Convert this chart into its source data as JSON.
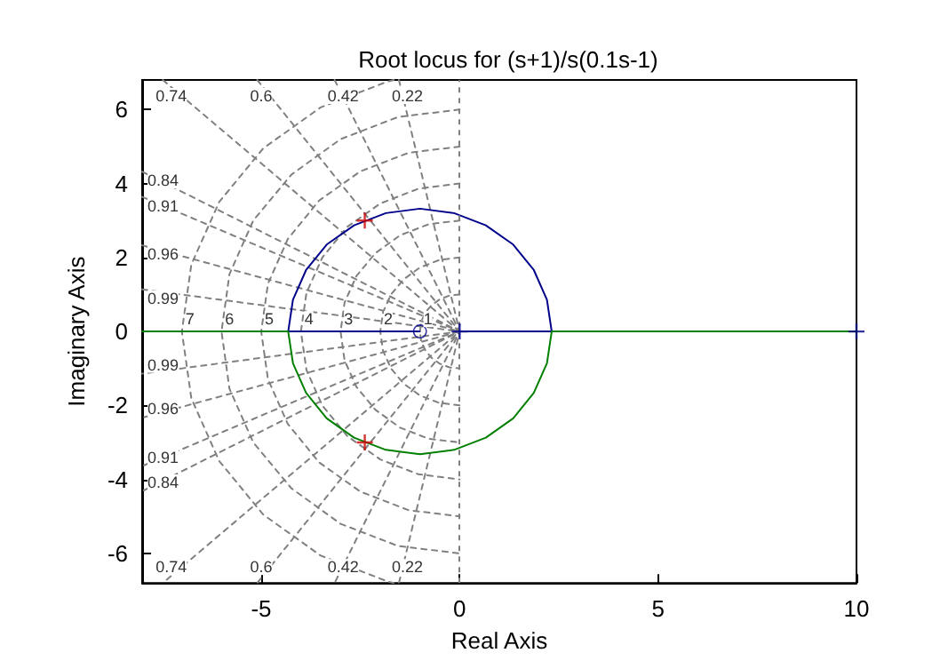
{
  "chart_data": {
    "type": "line",
    "title": "Root locus for (s+1)/s(0.1s-1)",
    "xlabel": "Real Axis",
    "ylabel": "Imaginary Axis",
    "xlim": [
      -8,
      10
    ],
    "xticks": [
      -5,
      0,
      5,
      10
    ],
    "ylim": [
      -6.8,
      6.8
    ],
    "yticks": [
      -6,
      -4,
      -2,
      0,
      2,
      4,
      6
    ],
    "grid": false,
    "ref_lines": [
      {
        "axis": "x",
        "value": 0,
        "color": "#808080",
        "line_style": "dashed"
      }
    ],
    "series": [
      {
        "color": "#808080",
        "line_style": "dashed",
        "marker": "none",
        "x": [
          -1.53,
          0,
          -1.53
        ],
        "values": [
          6.8,
          0,
          -6.8
        ]
      },
      {
        "color": "#808080",
        "line_style": "dashed",
        "marker": "none",
        "x": [
          -3.15,
          0,
          -3.15
        ],
        "values": [
          6.8,
          0,
          -6.8
        ]
      },
      {
        "color": "#808080",
        "line_style": "dashed",
        "marker": "none",
        "x": [
          -5.1,
          0,
          -5.1
        ],
        "values": [
          6.8,
          0,
          -6.8
        ]
      },
      {
        "color": "#808080",
        "line_style": "dashed",
        "marker": "none",
        "x": [
          -7.48,
          0,
          -7.48
        ],
        "values": [
          6.8,
          0,
          -6.8
        ]
      },
      {
        "color": "#808080",
        "line_style": "dashed",
        "marker": "none",
        "x": [
          -8,
          0,
          -8
        ],
        "values": [
          4.32,
          0,
          -4.32
        ]
      },
      {
        "color": "#808080",
        "line_style": "dashed",
        "marker": "none",
        "x": [
          -8,
          0,
          -8
        ],
        "values": [
          3.64,
          0,
          -3.64
        ]
      },
      {
        "color": "#808080",
        "line_style": "dashed",
        "marker": "none",
        "x": [
          -8,
          0,
          -8
        ],
        "values": [
          2.33,
          0,
          -2.33
        ]
      },
      {
        "color": "#808080",
        "line_style": "dashed",
        "marker": "none",
        "x": [
          -8,
          0,
          -8
        ],
        "values": [
          1.14,
          0,
          -1.14
        ]
      },
      {
        "color": "#808080",
        "line_style": "dashed",
        "marker": "none",
        "x": [
          0,
          -0.26,
          -0.5,
          -0.71,
          -0.87,
          -0.97,
          -1,
          -0.97,
          -0.87,
          -0.71,
          -0.5,
          -0.26,
          0
        ],
        "values": [
          1,
          0.97,
          0.87,
          0.71,
          0.5,
          0.26,
          0,
          -0.26,
          -0.5,
          -0.71,
          -0.87,
          -0.97,
          -1
        ]
      },
      {
        "color": "#808080",
        "line_style": "dashed",
        "marker": "none",
        "x": [
          0,
          -0.52,
          -1,
          -1.41,
          -1.73,
          -1.93,
          -2,
          -1.93,
          -1.73,
          -1.41,
          -1,
          -0.52,
          0
        ],
        "values": [
          2,
          1.93,
          1.73,
          1.41,
          1,
          0.52,
          0,
          -0.52,
          -1,
          -1.41,
          -1.73,
          -1.93,
          -2
        ]
      },
      {
        "color": "#808080",
        "line_style": "dashed",
        "marker": "none",
        "x": [
          0,
          -0.78,
          -1.5,
          -2.12,
          -2.6,
          -2.9,
          -3,
          -2.9,
          -2.6,
          -2.12,
          -1.5,
          -0.78,
          0
        ],
        "values": [
          3,
          2.9,
          2.6,
          2.12,
          1.5,
          0.78,
          0,
          -0.78,
          -1.5,
          -2.12,
          -2.6,
          -2.9,
          -3
        ]
      },
      {
        "color": "#808080",
        "line_style": "dashed",
        "marker": "none",
        "x": [
          0,
          -1.04,
          -2,
          -2.83,
          -3.46,
          -3.86,
          -4,
          -3.86,
          -3.46,
          -2.83,
          -2,
          -1.04,
          0
        ],
        "values": [
          4,
          3.86,
          3.46,
          2.83,
          2,
          1.04,
          0,
          -1.04,
          -2,
          -2.83,
          -3.46,
          -3.86,
          -4
        ]
      },
      {
        "color": "#808080",
        "line_style": "dashed",
        "marker": "none",
        "x": [
          0,
          -1.29,
          -2.5,
          -3.54,
          -4.33,
          -4.83,
          -5,
          -4.83,
          -4.33,
          -3.54,
          -2.5,
          -1.29,
          0
        ],
        "values": [
          5,
          4.83,
          4.33,
          3.54,
          2.5,
          1.29,
          0,
          -1.29,
          -2.5,
          -3.54,
          -4.33,
          -4.83,
          -5
        ]
      },
      {
        "color": "#808080",
        "line_style": "dashed",
        "marker": "none",
        "x": [
          0,
          -1.55,
          -3,
          -4.24,
          -5.2,
          -5.8,
          -6,
          -5.8,
          -5.2,
          -4.24,
          -3,
          -1.55,
          0
        ],
        "values": [
          6,
          5.8,
          5.2,
          4.24,
          3,
          1.55,
          0,
          -1.55,
          -3,
          -4.24,
          -5.2,
          -5.8,
          -6
        ]
      },
      {
        "color": "#808080",
        "line_style": "dashed",
        "marker": "none",
        "x": [
          -1.66,
          -1.81,
          -3.5,
          -4.95,
          -6.06,
          -6.76,
          -7,
          -6.76,
          -6.06,
          -4.95,
          -3.5,
          -1.81,
          -1.66
        ],
        "values": [
          6.8,
          6.76,
          6.06,
          4.95,
          3.5,
          1.81,
          0,
          -1.81,
          -3.5,
          -4.95,
          -6.06,
          -6.76,
          -6.8
        ]
      },
      {
        "color": "#00008b",
        "line_style": "solid",
        "marker": "none",
        "x": [
          0,
          2.32,
          2.2,
          1.87,
          1.35,
          0.66,
          -0.14,
          -1,
          -1.86,
          -2.66,
          -3.35,
          -3.87,
          -4.2,
          -4.32,
          -1
        ],
        "values": [
          0,
          0,
          0.86,
          1.66,
          2.35,
          2.87,
          3.2,
          3.32,
          3.2,
          2.87,
          2.35,
          1.66,
          0.86,
          0,
          0
        ]
      },
      {
        "color": "#007f00",
        "line_style": "solid",
        "marker": "none",
        "x": [
          10,
          2.32,
          2.2,
          1.87,
          1.35,
          0.66,
          -0.14,
          -1,
          -1.86,
          -2.66,
          -3.35,
          -3.87,
          -4.2,
          -4.32,
          -8
        ],
        "values": [
          0,
          0,
          -0.86,
          -1.66,
          -2.35,
          -2.87,
          -3.2,
          -3.32,
          -3.2,
          -2.87,
          -2.35,
          -1.66,
          -0.86,
          0,
          0
        ]
      },
      {
        "type": "scatter",
        "color": "#00008b",
        "marker": "cross",
        "x": [
          0,
          10
        ],
        "values": [
          0,
          0
        ]
      },
      {
        "type": "scatter",
        "color": "#00008b",
        "marker": "circle",
        "x": [
          -1
        ],
        "values": [
          0
        ]
      },
      {
        "type": "scatter",
        "color": "#cc0000",
        "marker": "cross",
        "x": [
          -2.39,
          -2.39
        ],
        "values": [
          3,
          -3
        ]
      }
    ],
    "annotations": [
      {
        "text": "0.74",
        "x": -7.48,
        "y": 6.8
      },
      {
        "text": "0.6",
        "x": -5.1,
        "y": 6.8
      },
      {
        "text": "0.42",
        "x": -3.15,
        "y": 6.8
      },
      {
        "text": "0.22",
        "x": -1.53,
        "y": 6.8
      },
      {
        "text": "0.84",
        "x": -8,
        "y": 4.32
      },
      {
        "text": "0.91",
        "x": -8,
        "y": 3.64
      },
      {
        "text": "0.96",
        "x": -8,
        "y": 2.33
      },
      {
        "text": "0.99",
        "x": -8,
        "y": 1.14
      },
      {
        "text": "0.99",
        "x": -8,
        "y": -1.14
      },
      {
        "text": "0.96",
        "x": -8,
        "y": -2.33
      },
      {
        "text": "0.91",
        "x": -8,
        "y": -3.64
      },
      {
        "text": "0.84",
        "x": -8,
        "y": -4.32
      },
      {
        "text": "0.74",
        "x": -7.48,
        "y": -6.8
      },
      {
        "text": "0.6",
        "x": -5.1,
        "y": -6.8
      },
      {
        "text": "0.42",
        "x": -3.15,
        "y": -6.8
      },
      {
        "text": "0.22",
        "x": -1.53,
        "y": -6.8
      },
      {
        "text": "7",
        "x": -7,
        "y": 0
      },
      {
        "text": "6",
        "x": -6,
        "y": 0
      },
      {
        "text": "5",
        "x": -5,
        "y": 0
      },
      {
        "text": "4",
        "x": -4,
        "y": 0
      },
      {
        "text": "3",
        "x": -3,
        "y": 0
      },
      {
        "text": "2",
        "x": -2,
        "y": 0
      },
      {
        "text": "1",
        "x": -1,
        "y": 0
      }
    ]
  }
}
